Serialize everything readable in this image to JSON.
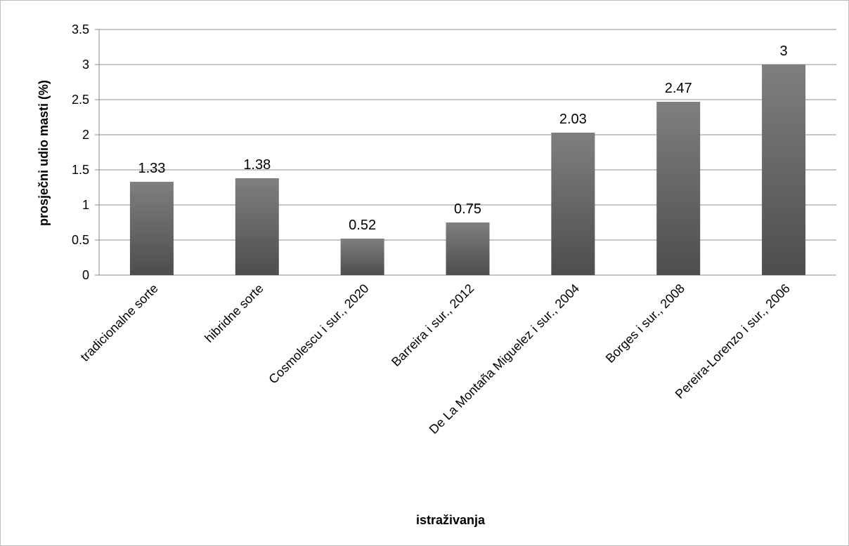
{
  "chart_data": {
    "type": "bar",
    "title": "",
    "xlabel": "istraživanja",
    "ylabel": "prosječni udio masti (%)",
    "ylim": [
      0,
      3.5
    ],
    "yticks": [
      "0",
      "0.5",
      "1",
      "1.5",
      "2",
      "2.5",
      "3",
      "3.5"
    ],
    "grid": true,
    "legend": "none",
    "categories": [
      "tradicionalne sorte",
      "hibridne sorte",
      "Cosmolescu i sur., 2020",
      "Barreira i sur., 2012",
      "De La Montaña Miguelez i sur., 2004",
      "Borges i sur., 2008",
      "Pereira-Lorenzo i sur., 2006"
    ],
    "values": [
      1.33,
      1.38,
      0.52,
      0.75,
      2.03,
      2.47,
      3
    ],
    "data_labels": [
      "1.33",
      "1.38",
      "0.52",
      "0.75",
      "2.03",
      "2.47",
      "3"
    ],
    "colors": {
      "bar_top": "#7f7f7f",
      "bar_bottom": "#4d4d4d",
      "grid": "#8c8c8c"
    }
  }
}
